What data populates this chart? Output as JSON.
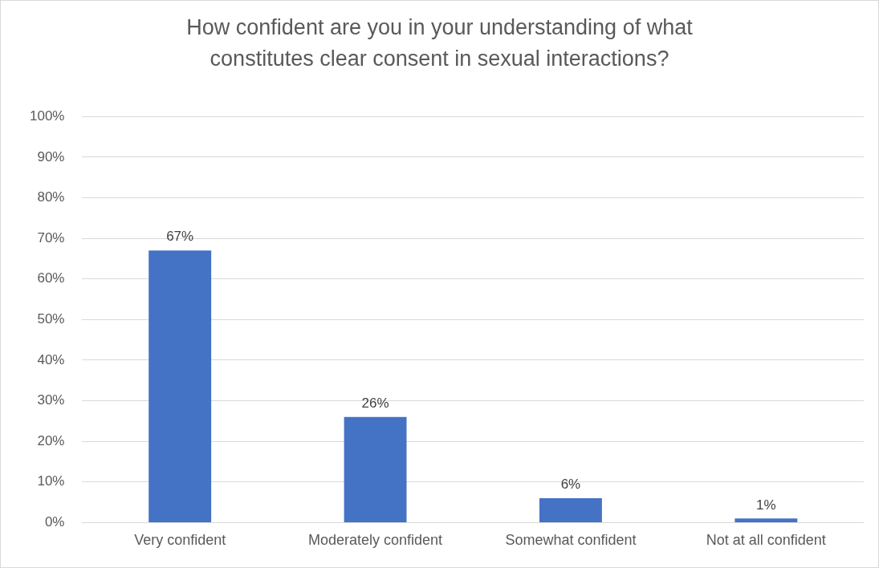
{
  "chart_data": {
    "type": "bar",
    "title": "How confident are you in your understanding of what constitutes clear consent in sexual interactions?",
    "categories": [
      "Very confident",
      "Moderately confident",
      "Somewhat confident",
      "Not at all confident"
    ],
    "values": [
      67,
      26,
      6,
      1
    ],
    "value_labels": [
      "67%",
      "26%",
      "6%",
      "1%"
    ],
    "color": "#4472c4",
    "grid": "y",
    "ylim": [
      0,
      100
    ],
    "yticks": [
      {
        "value": 0,
        "label": "0%"
      },
      {
        "value": 10,
        "label": "10%"
      },
      {
        "value": 20,
        "label": "20%"
      },
      {
        "value": 30,
        "label": "30%"
      },
      {
        "value": 40,
        "label": "40%"
      },
      {
        "value": 50,
        "label": "50%"
      },
      {
        "value": 60,
        "label": "60%"
      },
      {
        "value": 70,
        "label": "70%"
      },
      {
        "value": 80,
        "label": "80%"
      },
      {
        "value": 90,
        "label": "90%"
      },
      {
        "value": 100,
        "label": "100%"
      }
    ]
  }
}
